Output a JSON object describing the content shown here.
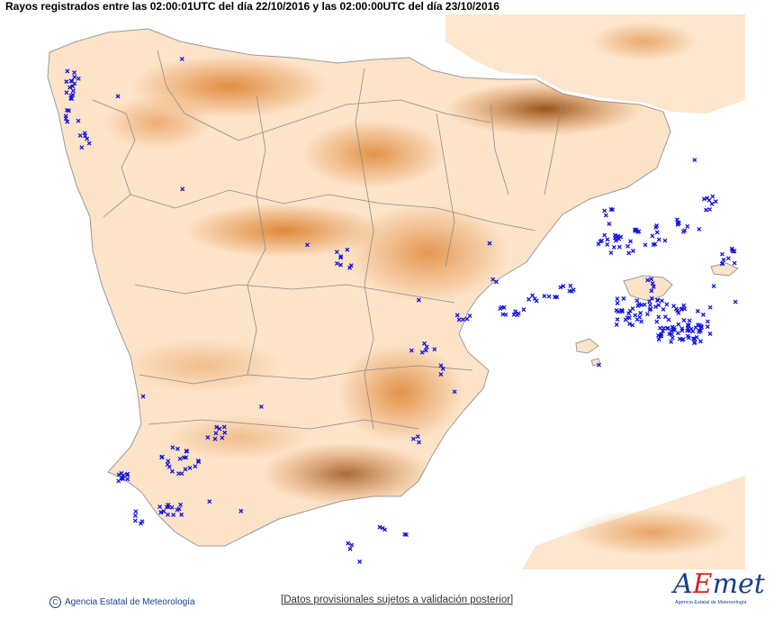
{
  "header": {
    "title": "Rayos registrados entre las 02:00:01UTC del día 22/10/2016 y las 02:00:00UTC del día 23/10/2016"
  },
  "map": {
    "region": "Península Ibérica y Baleares",
    "land_color": "#fde3c8",
    "high_terrain_color": "#b45c10",
    "sea_color": "#ffffff",
    "border_color": "#8c8c8c",
    "lightning_marker": "x",
    "lightning_color": "#1010e0"
  },
  "footer": {
    "credit": "Agencia Estatal de Meteorología",
    "note": "[Datos provisionales sujetos a validación posterior]",
    "logo_text": "AEmet",
    "logo_subtitle": "Agencia Estatal de Meteorología"
  }
}
